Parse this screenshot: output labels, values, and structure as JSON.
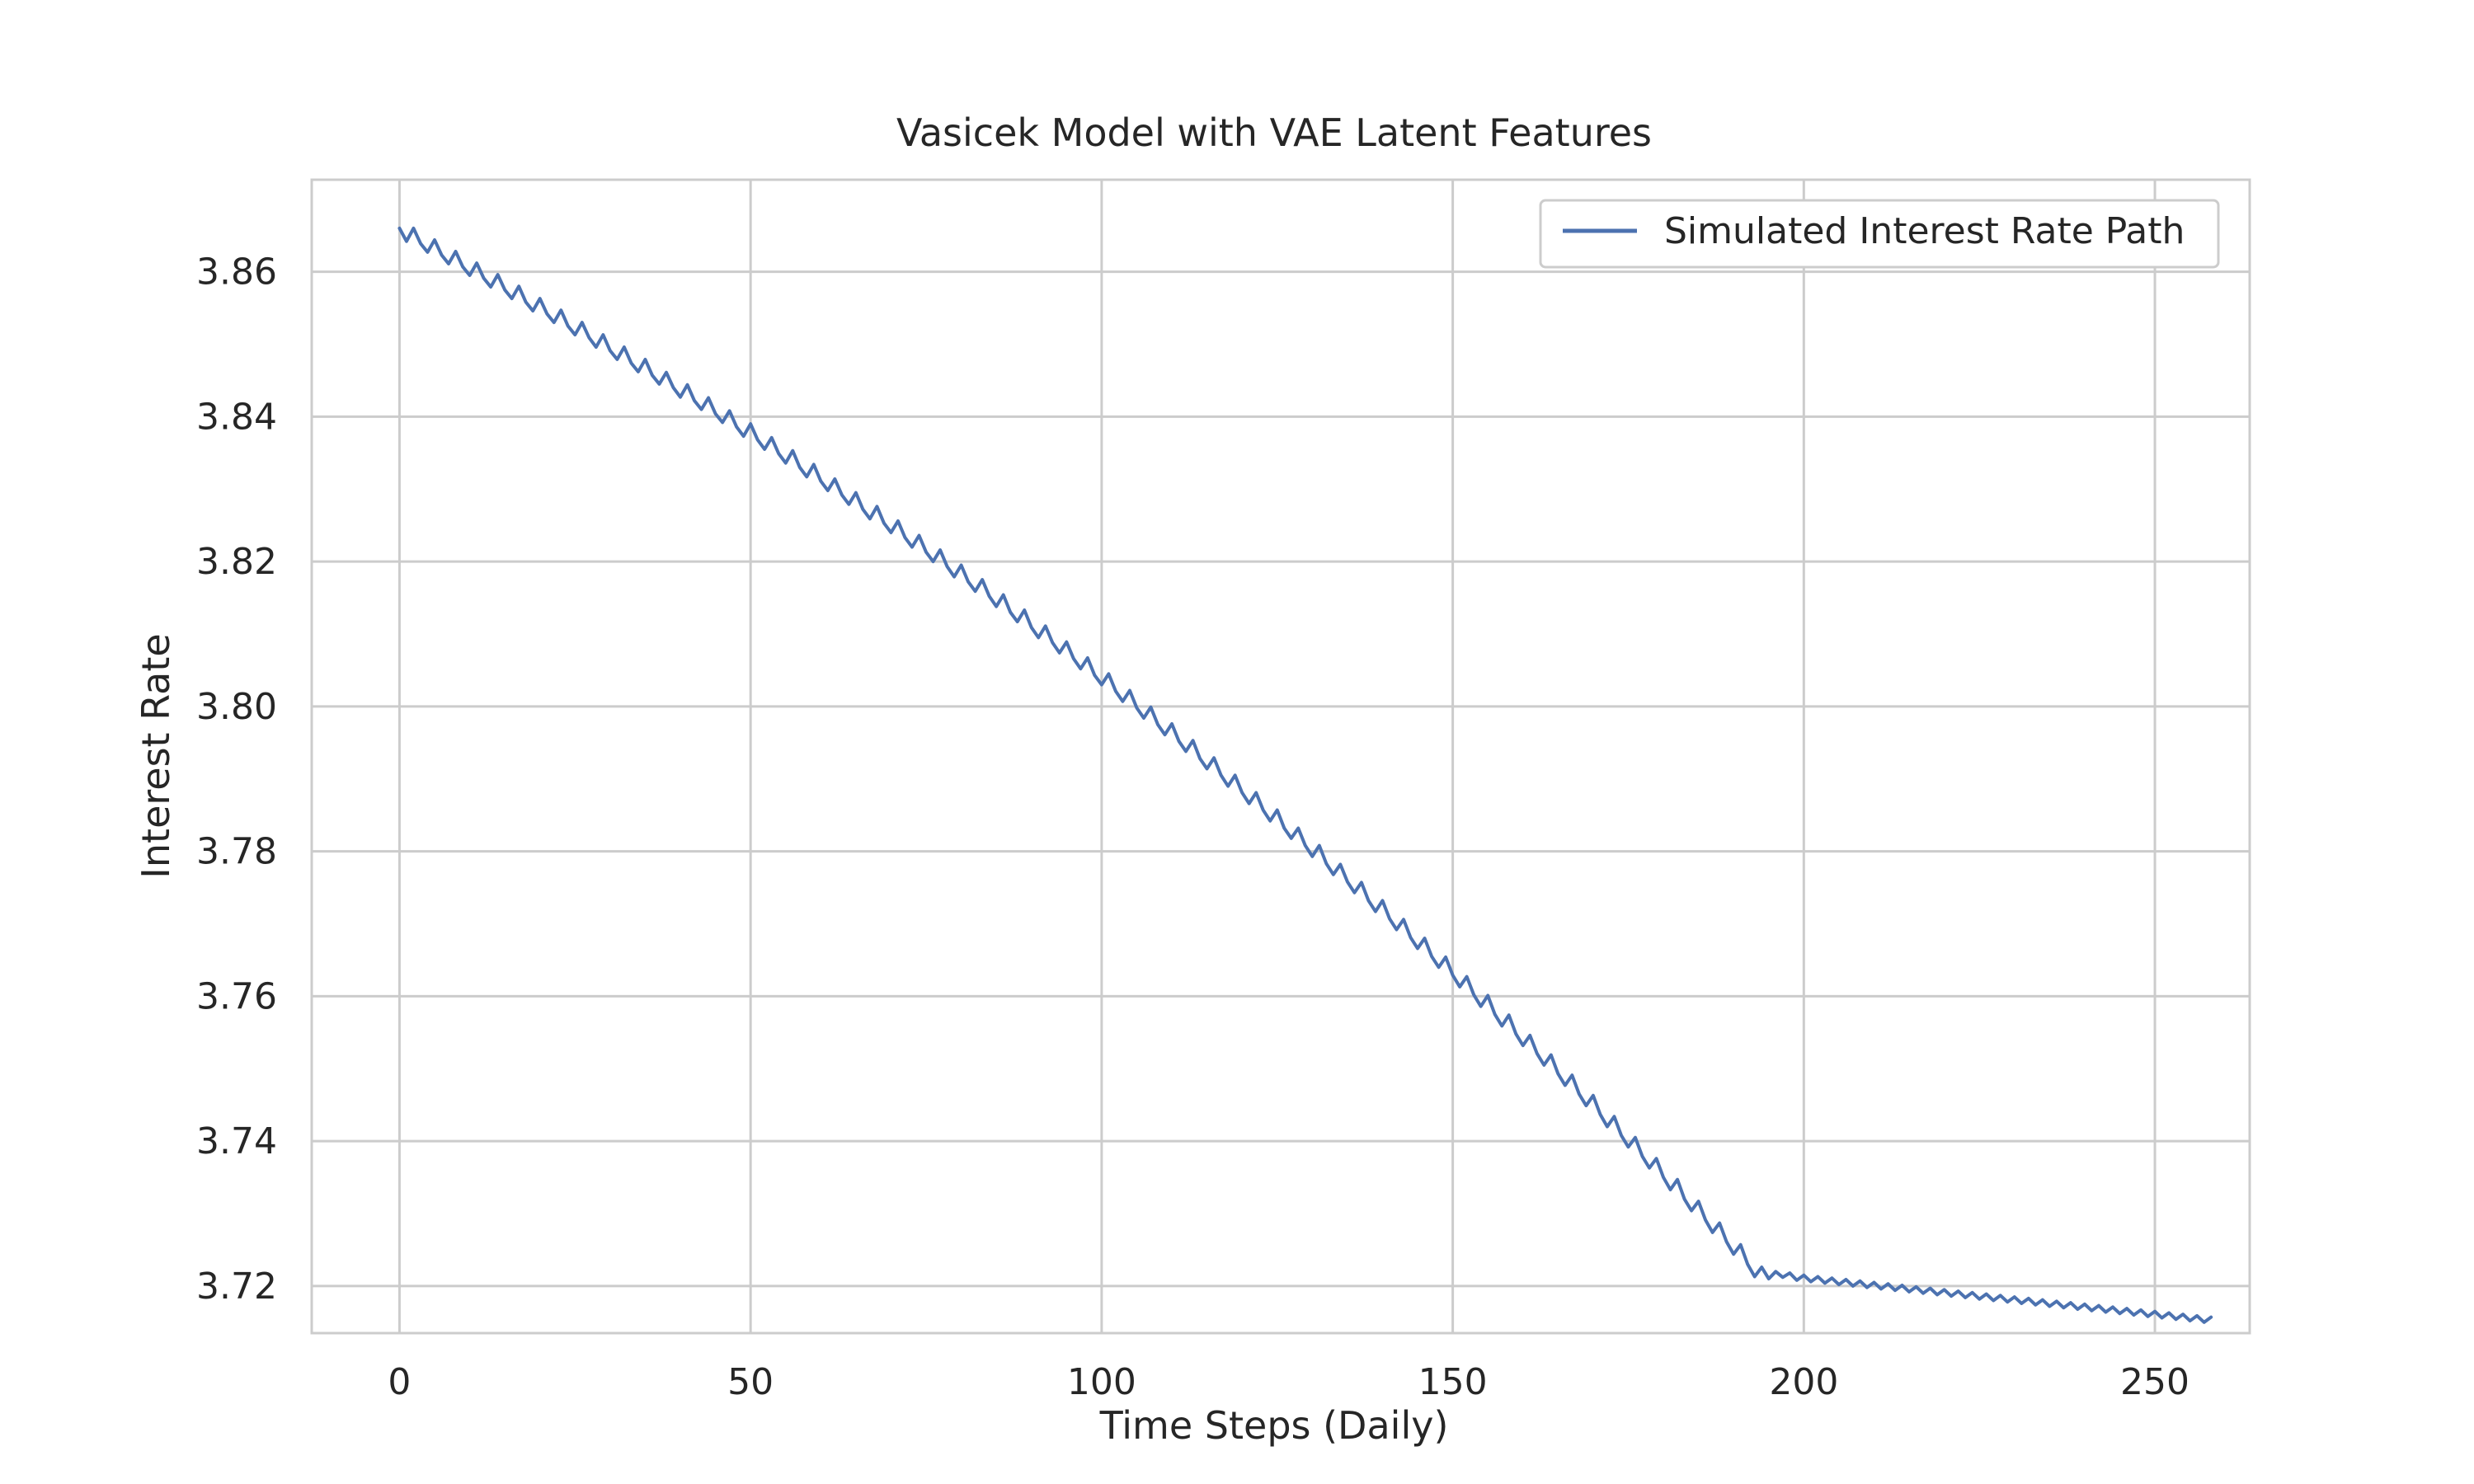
{
  "chart_data": {
    "type": "line",
    "title": "Vasicek Model with VAE Latent Features",
    "xlabel": "Time Steps (Daily)",
    "ylabel": "Interest Rate",
    "xlim": [
      -12.5,
      263.5
    ],
    "ylim": [
      3.7135,
      3.8727
    ],
    "xticks": [
      0,
      50,
      100,
      150,
      200,
      250
    ],
    "xtick_labels": [
      "0",
      "50",
      "100",
      "150",
      "200",
      "250"
    ],
    "yticks": [
      3.72,
      3.74,
      3.76,
      3.78,
      3.8,
      3.82,
      3.84,
      3.86
    ],
    "ytick_labels": [
      "3.72",
      "3.74",
      "3.76",
      "3.78",
      "3.80",
      "3.82",
      "3.84",
      "3.86"
    ],
    "grid": true,
    "legend": {
      "placement": "upper right",
      "entries": [
        "Simulated Interest Rate Path"
      ]
    },
    "series": [
      {
        "name": "Simulated Interest Rate Path",
        "color": "#4c72b0",
        "x_start": 0,
        "x_step": 1,
        "values": [
          3.866,
          3.8642,
          3.866,
          3.8639,
          3.8627,
          3.8644,
          3.8623,
          3.8611,
          3.8628,
          3.8607,
          3.8595,
          3.8612,
          3.8591,
          3.8579,
          3.8596,
          3.8575,
          3.8563,
          3.858,
          3.8558,
          3.8546,
          3.8563,
          3.8542,
          3.853,
          3.8547,
          3.8525,
          3.8513,
          3.853,
          3.8509,
          3.8496,
          3.8513,
          3.8491,
          3.8479,
          3.8496,
          3.8474,
          3.8462,
          3.8479,
          3.8457,
          3.8445,
          3.8461,
          3.844,
          3.8427,
          3.8444,
          3.8422,
          3.841,
          3.8426,
          3.8404,
          3.8392,
          3.8408,
          3.8386,
          3.8373,
          3.839,
          3.8368,
          3.8355,
          3.8371,
          3.8349,
          3.8336,
          3.8353,
          3.833,
          3.8317,
          3.8334,
          3.8311,
          3.8298,
          3.8314,
          3.8292,
          3.8279,
          3.8295,
          3.8272,
          3.8259,
          3.8276,
          3.8253,
          3.824,
          3.8256,
          3.8233,
          3.822,
          3.8236,
          3.8213,
          3.82,
          3.8216,
          3.8193,
          3.8179,
          3.8195,
          3.8172,
          3.8159,
          3.8175,
          3.8152,
          3.8138,
          3.8154,
          3.813,
          3.8117,
          3.8133,
          3.8109,
          3.8095,
          3.8111,
          3.8088,
          3.8074,
          3.8089,
          3.8066,
          3.8052,
          3.8067,
          3.8043,
          3.803,
          3.8045,
          3.8021,
          3.8007,
          3.8022,
          3.7998,
          3.7984,
          3.7999,
          3.7975,
          3.7961,
          3.7976,
          3.7952,
          3.7938,
          3.7953,
          3.7928,
          3.7914,
          3.7929,
          3.7905,
          3.789,
          3.7905,
          3.7881,
          3.7866,
          3.7881,
          3.7857,
          3.7842,
          3.7857,
          3.7832,
          3.7818,
          3.7832,
          3.7808,
          3.7793,
          3.7808,
          3.7783,
          3.7768,
          3.7782,
          3.7758,
          3.7743,
          3.7757,
          3.7732,
          3.7717,
          3.7732,
          3.7707,
          3.7692,
          3.7706,
          3.7681,
          3.7666,
          3.768,
          3.7655,
          3.764,
          3.7654,
          3.7629,
          3.7613,
          3.7627,
          3.7602,
          3.7586,
          3.7601,
          3.7575,
          3.7559,
          3.7574,
          3.7548,
          3.7532,
          3.7546,
          3.7521,
          3.7505,
          3.7519,
          3.7493,
          3.7477,
          3.7491,
          3.7465,
          3.7449,
          3.7463,
          3.7437,
          3.742,
          3.7434,
          3.7408,
          3.7392,
          3.7405,
          3.7379,
          3.7363,
          3.7376,
          3.735,
          3.7333,
          3.7347,
          3.732,
          3.7304,
          3.7317,
          3.7291,
          3.7274,
          3.7287,
          3.7261,
          3.7244,
          3.7257,
          3.723,
          3.7213,
          3.7226,
          3.721,
          3.722,
          3.7212,
          3.7218,
          3.7208,
          3.7215,
          3.7206,
          3.7213,
          3.7204,
          3.7211,
          3.7202,
          3.7209,
          3.72,
          3.7207,
          3.7198,
          3.7205,
          3.7196,
          3.7203,
          3.7194,
          3.7201,
          3.7192,
          3.7199,
          3.719,
          3.7197,
          3.7188,
          3.7195,
          3.7186,
          3.7193,
          3.7184,
          3.7191,
          3.7182,
          3.7189,
          3.718,
          3.7187,
          3.7178,
          3.7185,
          3.7176,
          3.7183,
          3.7174,
          3.7181,
          3.7172,
          3.7179,
          3.717,
          3.7177,
          3.7168,
          3.7175,
          3.7166,
          3.7173,
          3.7164,
          3.7171,
          3.7162,
          3.7169,
          3.716,
          3.7167,
          3.7158,
          3.7165,
          3.7156,
          3.7163,
          3.7154,
          3.7161,
          3.7152,
          3.7159,
          3.715,
          3.7157
        ]
      }
    ]
  }
}
